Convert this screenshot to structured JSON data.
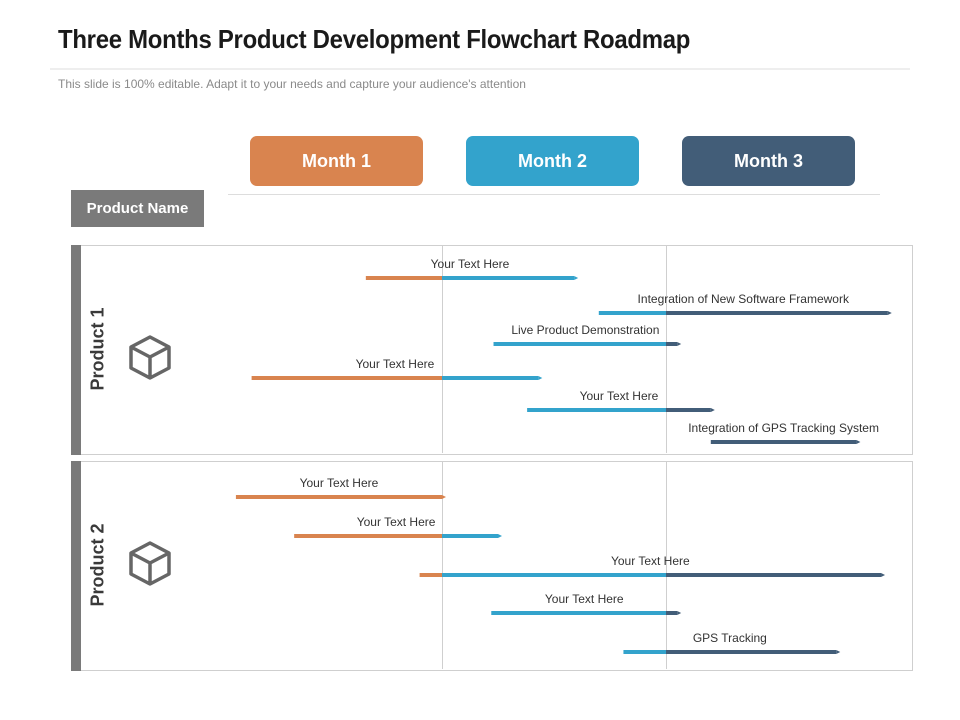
{
  "title": "Three Months Product Development Flowchart Roadmap",
  "subtitle": "This slide is 100% editable. Adapt it to your needs and capture your audience's attention",
  "months": [
    {
      "label": "Month 1",
      "color": "#D9844F"
    },
    {
      "label": "Month 2",
      "color": "#33A3CC"
    },
    {
      "label": "Month 3",
      "color": "#425D78"
    }
  ],
  "product_name_label": "Product Name",
  "products": [
    {
      "label": "Product 1",
      "icon": "cube-icon",
      "tasks": [
        {
          "label": "Your Text Here",
          "start": 0.66,
          "end": 1.59
        },
        {
          "label": "Integration of New Software Framework",
          "start": 1.7,
          "end": 2.99
        },
        {
          "label": "Live Product Demonstration",
          "start": 1.23,
          "end": 2.05
        },
        {
          "label": "Your Text Here",
          "start": 0.15,
          "end": 1.43
        },
        {
          "label": "Your Text Here",
          "start": 1.38,
          "end": 2.2
        },
        {
          "label": "Integration of GPS Tracking System",
          "start": 2.2,
          "end": 2.85
        }
      ]
    },
    {
      "label": "Product 2",
      "icon": "cube-icon",
      "tasks": [
        {
          "label": "Your Text Here",
          "start": 0.08,
          "end": 1.0
        },
        {
          "label": "Your Text Here",
          "start": 0.34,
          "end": 1.25
        },
        {
          "label": "Your Text Here",
          "start": 0.9,
          "end": 2.96
        },
        {
          "label": "Your Text Here",
          "start": 1.22,
          "end": 2.05
        },
        {
          "label": "GPS Tracking",
          "start": 1.81,
          "end": 2.76
        }
      ]
    }
  ]
}
